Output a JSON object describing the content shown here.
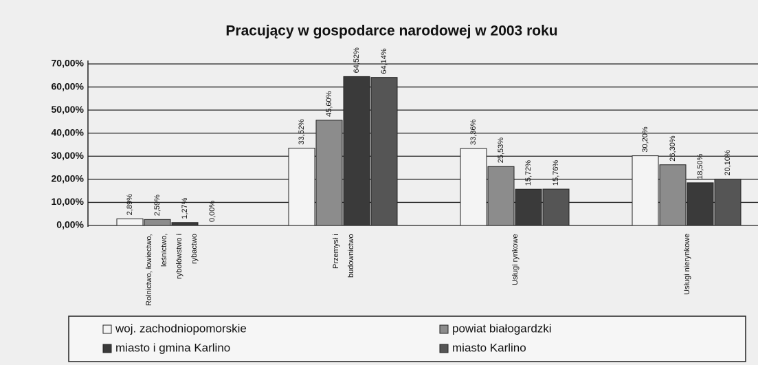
{
  "chart_data": {
    "type": "bar",
    "title": "Pracujący w gospodarce narodowej w 2003 roku",
    "categories": [
      "Rolnictwo, łowiectwo, leśnictwo, rybołówstwo i rybactwo",
      "Przemysł i budownictwo",
      "Usługi rynkowe",
      "Usługi nierynkowe"
    ],
    "series": [
      {
        "name": "woj. zachodniopomorskie",
        "color": "#f4f4f4",
        "values": [
          2.89,
          33.52,
          33.36,
          30.2
        ],
        "value_labels": [
          "2,89%",
          "33,52%",
          "33,36%",
          "30,20%"
        ]
      },
      {
        "name": "powiat białogardzki",
        "color": "#8c8c8c",
        "values": [
          2.59,
          45.6,
          25.53,
          26.3
        ],
        "value_labels": [
          "2,59%",
          "45,60%",
          "25,53%",
          "26,30%"
        ]
      },
      {
        "name": "miasto i gmina Karlino",
        "color": "#3a3a3a",
        "values": [
          1.27,
          64.52,
          15.72,
          18.5
        ],
        "value_labels": [
          "1,27%",
          "64,52%",
          "15,72%",
          "18,50%"
        ]
      },
      {
        "name": "miasto Karlino",
        "color": "#555555",
        "values": [
          0.0,
          64.14,
          15.76,
          20.1
        ],
        "value_labels": [
          "0,00%",
          "64,14%",
          "15,76%",
          "20,10%"
        ]
      }
    ],
    "ylim": [
      0,
      70
    ],
    "yticks": [
      {
        "value": 0,
        "label": "0,00%"
      },
      {
        "value": 10,
        "label": "10,00%"
      },
      {
        "value": 20,
        "label": "20,00%"
      },
      {
        "value": 30,
        "label": "30,00%"
      },
      {
        "value": 40,
        "label": "40,00%"
      },
      {
        "value": 50,
        "label": "50,00%"
      },
      {
        "value": 60,
        "label": "60,00%"
      },
      {
        "value": 70,
        "label": "70,00%"
      }
    ],
    "grid": true
  }
}
